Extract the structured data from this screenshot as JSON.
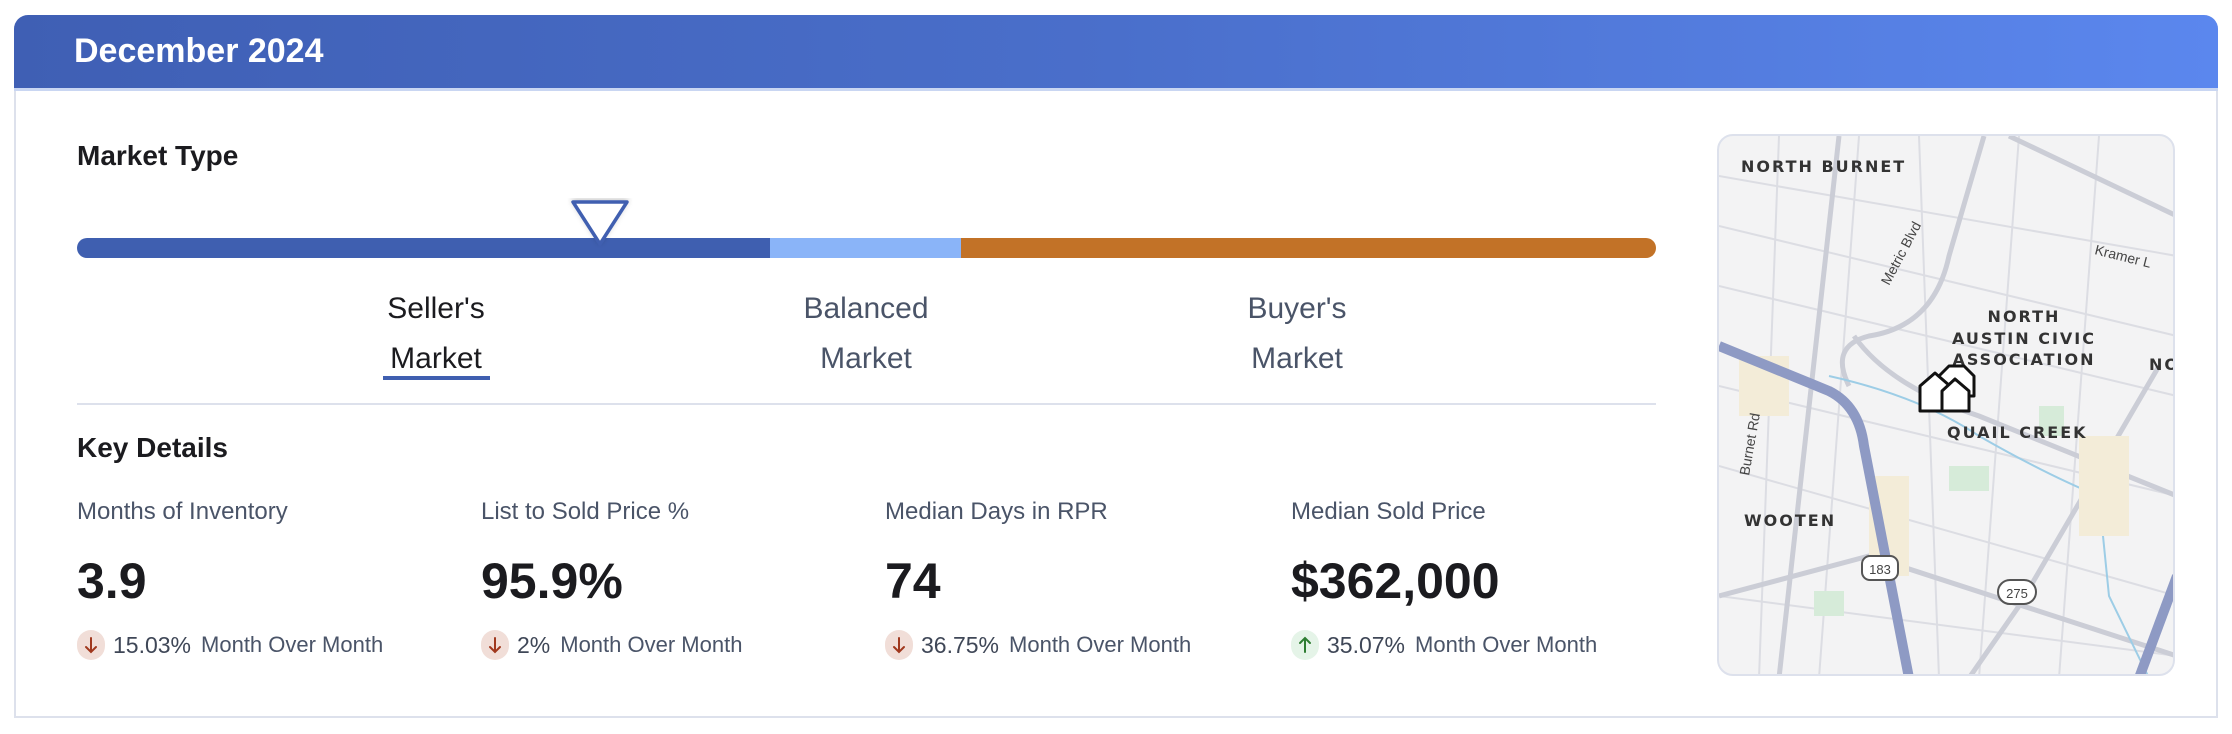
{
  "header": {
    "title": "December 2024",
    "gradient": [
      "#3f5fb4",
      "#5b87ee"
    ]
  },
  "market_type": {
    "title": "Market Type",
    "segments": [
      {
        "label_line1": "Seller's",
        "label_line2": "Market",
        "color": "#3f5fb0",
        "active": true
      },
      {
        "label_line1": "Balanced",
        "label_line2": "Market",
        "color": "#8ab4f8",
        "active": false
      },
      {
        "label_line1": "Buyer's",
        "label_line2": "Market",
        "color": "#c27227",
        "active": false
      }
    ]
  },
  "key_details": {
    "title": "Key Details",
    "metrics": [
      {
        "label": "Months of Inventory",
        "value": "3.9",
        "change": "15.03%",
        "direction": "down",
        "period": "Month Over Month"
      },
      {
        "label": "List to Sold Price %",
        "value": "95.9%",
        "change": "2%",
        "direction": "down",
        "period": "Month Over Month"
      },
      {
        "label": "Median Days in RPR",
        "value": "74",
        "change": "36.75%",
        "direction": "down",
        "period": "Month Over Month"
      },
      {
        "label": "Median Sold Price",
        "value": "$362,000",
        "change": "35.07%",
        "direction": "up",
        "period": "Month Over Month"
      }
    ]
  },
  "map": {
    "labels": {
      "north_burnet": "NORTH BURNET",
      "metric_blvd": "Metric Blvd",
      "kramer": "Kramer L",
      "nacа1": "NORTH",
      "naca2": "AUSTIN CIVIC",
      "naca3": "ASSOCIATION",
      "no": "NO",
      "quail_creek": "QUAIL CREEK",
      "burnet_rd": "Burnet Rd",
      "wooten": "WOOTEN",
      "us183": "183",
      "hwy275": "275"
    }
  }
}
